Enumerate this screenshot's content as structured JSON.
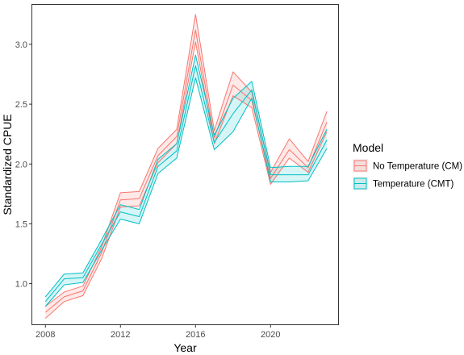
{
  "chart_data": {
    "type": "line",
    "xlabel": "Year",
    "ylabel": "Standardized CPUE",
    "xlim": [
      2007.3,
      2023.6
    ],
    "ylim": [
      0.66,
      3.33
    ],
    "x_ticks": [
      2008,
      2012,
      2016,
      2020
    ],
    "y_ticks": [
      1.0,
      1.5,
      2.0,
      2.5,
      3.0
    ],
    "y_tick_labels": [
      "1.0",
      "1.5",
      "2.0",
      "2.5",
      "3.0"
    ],
    "grid": false,
    "legend_position": "right",
    "legend": {
      "title": "Model",
      "entries": [
        "No Temperature (CM)",
        "Temperature (CMT)"
      ]
    },
    "x": [
      2008,
      2009,
      2010,
      2011,
      2012,
      2013,
      2014,
      2015,
      2016,
      2017,
      2018,
      2019,
      2020,
      2021,
      2022,
      2023
    ],
    "series": [
      {
        "name": "No Temperature (CM)",
        "color": "#F8766D",
        "values": [
          0.76,
          0.89,
          0.94,
          1.26,
          1.7,
          1.71,
          2.07,
          2.23,
          3.12,
          2.22,
          2.66,
          2.53,
          1.88,
          2.12,
          1.97,
          2.35
        ],
        "lower": [
          0.71,
          0.85,
          0.9,
          1.21,
          1.64,
          1.65,
          2.01,
          2.17,
          3.02,
          2.17,
          2.57,
          2.47,
          1.83,
          2.05,
          1.93,
          2.27
        ],
        "upper": [
          0.81,
          0.93,
          0.98,
          1.31,
          1.76,
          1.77,
          2.13,
          2.29,
          3.25,
          2.28,
          2.77,
          2.6,
          1.93,
          2.21,
          2.02,
          2.44
        ]
      },
      {
        "name": "Temperature (CMT)",
        "color": "#00BFC4",
        "values": [
          0.85,
          1.04,
          1.05,
          1.33,
          1.6,
          1.56,
          1.98,
          2.11,
          2.82,
          2.18,
          2.42,
          2.62,
          1.91,
          1.91,
          1.91,
          2.2
        ],
        "lower": [
          0.81,
          0.99,
          1.01,
          1.28,
          1.54,
          1.5,
          1.92,
          2.05,
          2.72,
          2.12,
          2.27,
          2.55,
          1.85,
          1.85,
          1.86,
          2.13
        ],
        "upper": [
          0.89,
          1.08,
          1.09,
          1.37,
          1.66,
          1.62,
          2.04,
          2.17,
          2.91,
          2.24,
          2.55,
          2.69,
          1.97,
          1.98,
          1.98,
          2.29
        ]
      }
    ]
  }
}
